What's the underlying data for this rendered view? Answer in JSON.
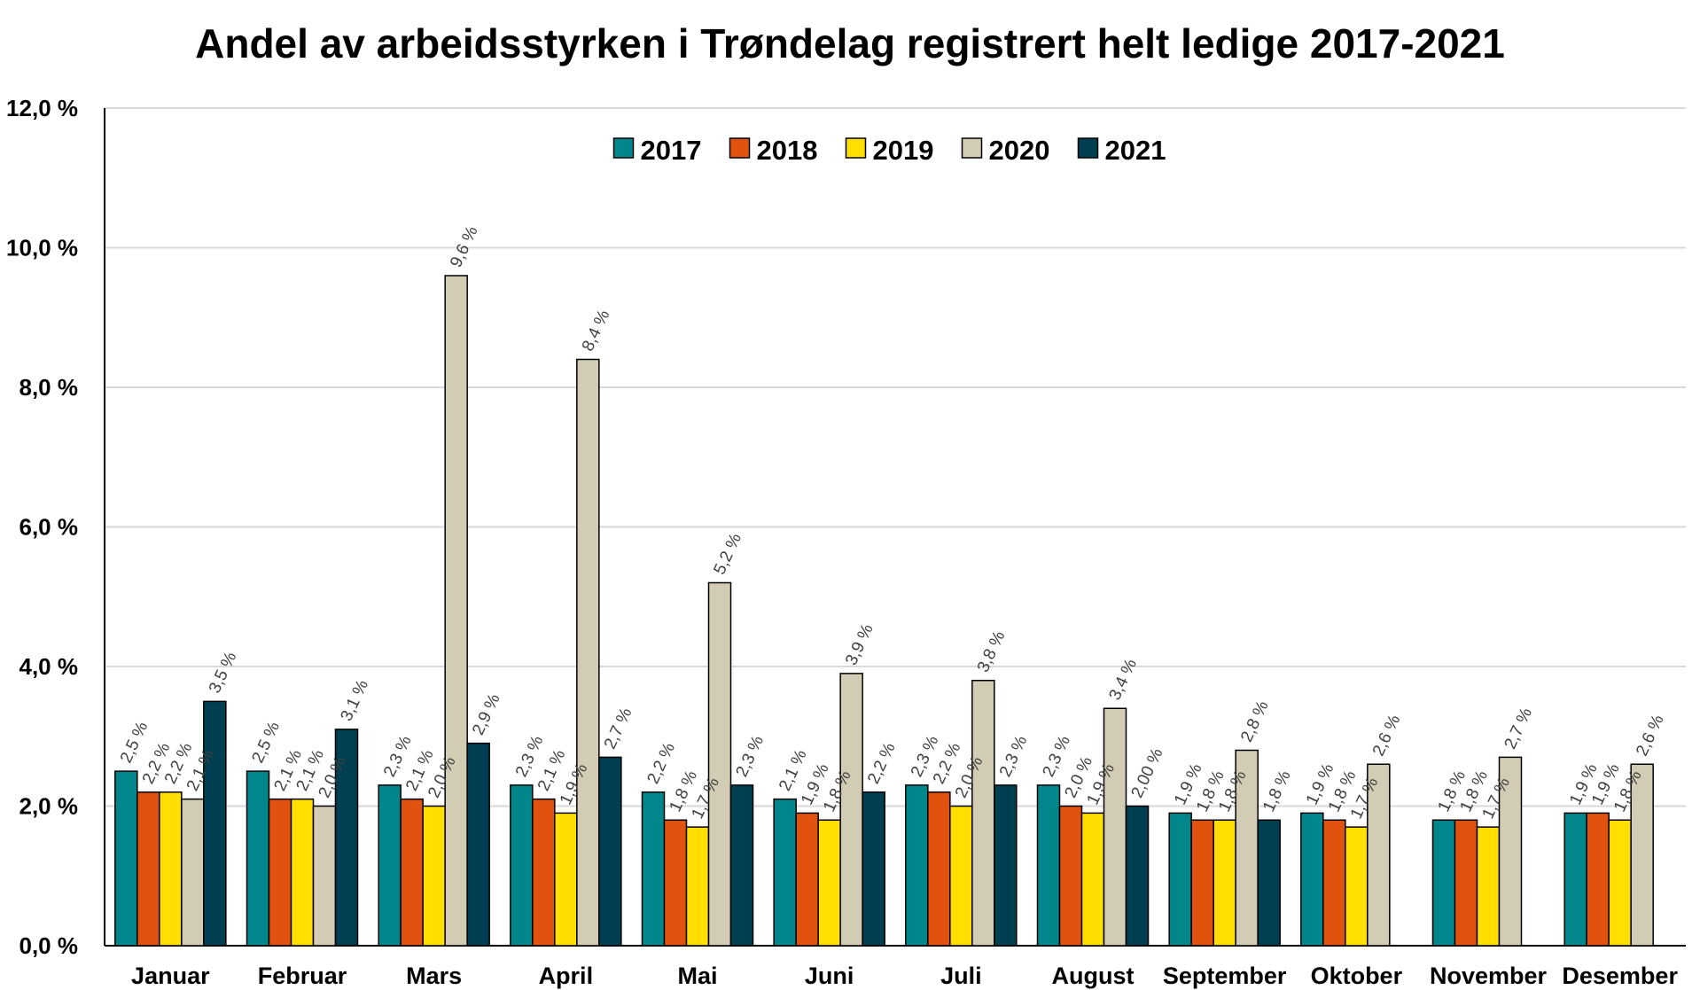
{
  "chart_data": {
    "type": "bar",
    "title": "Andel av arbeidsstyrken i Trøndelag registrert helt ledige 2017-2021",
    "xlabel": "",
    "ylabel": "",
    "ylim": [
      0,
      12
    ],
    "yticks": [
      "0,0 %",
      "2,0 %",
      "4,0 %",
      "6,0 %",
      "8,0 %",
      "10,0 %",
      "12,0 %"
    ],
    "grid": true,
    "legend_position": "top-center",
    "categories": [
      "Januar",
      "Februar",
      "Mars",
      "April",
      "Mai",
      "Juni",
      "Juli",
      "August",
      "September",
      "Oktober",
      "November",
      "Desember"
    ],
    "series": [
      {
        "name": "2017",
        "color": "#00868b",
        "values": [
          2.5,
          2.5,
          2.3,
          2.3,
          2.2,
          2.1,
          2.3,
          2.3,
          1.9,
          1.9,
          1.8,
          1.9
        ],
        "labels": [
          "2,5 %",
          "2,5 %",
          "2,3 %",
          "2,3 %",
          "2,2 %",
          "2,1 %",
          "2,3 %",
          "2,3 %",
          "1,9 %",
          "1,9 %",
          "1,8 %",
          "1,9 %"
        ]
      },
      {
        "name": "2018",
        "color": "#e0520d",
        "values": [
          2.2,
          2.1,
          2.1,
          2.1,
          1.8,
          1.9,
          2.2,
          2.0,
          1.8,
          1.8,
          1.8,
          1.9
        ],
        "labels": [
          "2,2 %",
          "2,1 %",
          "2,1 %",
          "2,1 %",
          "1,8 %",
          "1,9 %",
          "2,2 %",
          "2,0 %",
          "1,8 %",
          "1,8 %",
          "1,8 %",
          "1,9 %"
        ]
      },
      {
        "name": "2019",
        "color": "#ffde00",
        "values": [
          2.2,
          2.1,
          2.0,
          1.9,
          1.7,
          1.8,
          2.0,
          1.9,
          1.8,
          1.7,
          1.7,
          1.8
        ],
        "labels": [
          "2,2 %",
          "2,1 %",
          "2,0 %",
          "1,9 %",
          "1,7 %",
          "1,8 %",
          "2,0 %",
          "1,9 %",
          "1,8 %",
          "1,7 %",
          "1,7 %",
          "1,8 %"
        ]
      },
      {
        "name": "2020",
        "color": "#d2ccb4",
        "values": [
          2.1,
          2.0,
          9.6,
          8.4,
          5.2,
          3.9,
          3.8,
          3.4,
          2.8,
          2.6,
          2.7,
          2.6
        ],
        "labels": [
          "2,1 %",
          "2,0 %",
          "9,6 %",
          "8,4 %",
          "5,2 %",
          "3,9 %",
          "3,8 %",
          "3,4 %",
          "2,8 %",
          "2,6 %",
          "2,7 %",
          "2,6 %"
        ]
      },
      {
        "name": "2021",
        "color": "#003f52",
        "values": [
          3.5,
          3.1,
          2.9,
          2.7,
          2.3,
          2.2,
          2.3,
          2.0,
          1.8,
          null,
          null,
          null
        ],
        "labels": [
          "3,5 %",
          "3,1 %",
          "2,9 %",
          "2,7 %",
          "2,3 %",
          "2,2 %",
          "2,3 %",
          "2,00 %",
          "1,8 %",
          null,
          null,
          null
        ]
      }
    ]
  }
}
